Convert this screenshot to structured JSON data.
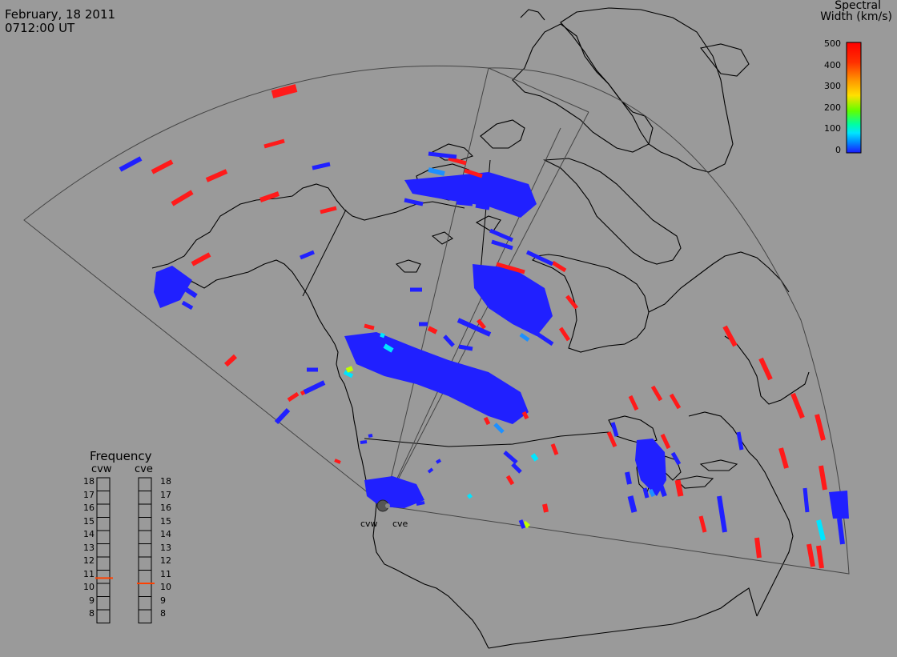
{
  "header": {
    "date": "February, 18 2011",
    "time": "0712:00 UT"
  },
  "colorbar": {
    "title_line1": "Spectral",
    "title_line2": "Width (km/s)",
    "ticks": [
      "500",
      "400",
      "300",
      "200",
      "100",
      "0"
    ],
    "colors": [
      "#ff0000",
      "#ff6a00",
      "#ffd800",
      "#7fff00",
      "#00ff7f",
      "#00e5ff",
      "#0060ff",
      "#1a1aff"
    ]
  },
  "frequency_panel": {
    "title": "Frequency",
    "radars": [
      {
        "label": "cvw",
        "value_mhz": 10.9
      },
      {
        "label": "cve",
        "value_mhz": 10.5
      }
    ],
    "ticks": [
      "18",
      "17",
      "16",
      "15",
      "14",
      "13",
      "12",
      "11",
      "10",
      "9",
      "8"
    ],
    "marker_color": "#ff4000"
  },
  "radar_sites": [
    {
      "label": "cvw"
    },
    {
      "label": "cve"
    }
  ],
  "map": {
    "background": "#9a9a9a",
    "coastline_color": "#000000",
    "fov_color": "#444444"
  },
  "echo_colors": {
    "blue": "#2020ff",
    "red": "#ff1a1a",
    "cyan": "#00e5ff",
    "lightblue": "#1e90ff",
    "yellowgreen": "#c0ff00"
  }
}
